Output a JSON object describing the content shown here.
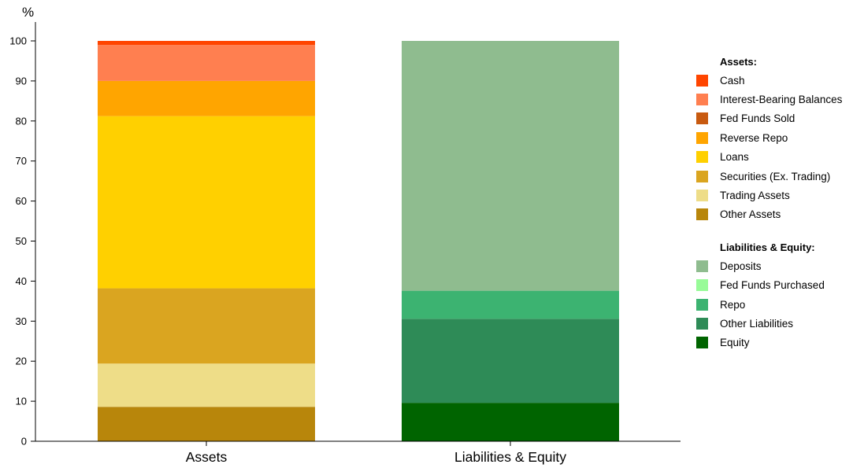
{
  "chart_data": {
    "type": "bar",
    "stacked": true,
    "ylabel": "%",
    "ylim": [
      0,
      100
    ],
    "yticks": [
      0,
      10,
      20,
      30,
      40,
      50,
      60,
      70,
      80,
      90,
      100
    ],
    "categories": [
      "Assets",
      "Liabilities & Equity"
    ],
    "series": [
      {
        "name": "Other Assets",
        "group": "Assets",
        "color": "#B8860B",
        "values": [
          8.6,
          0
        ]
      },
      {
        "name": "Trading Assets",
        "group": "Assets",
        "color": "#EEDD88",
        "values": [
          10.8,
          0
        ]
      },
      {
        "name": "Securities (Ex. Trading)",
        "group": "Assets",
        "color": "#DAA520",
        "values": [
          18.8,
          0
        ]
      },
      {
        "name": "Loans",
        "group": "Assets",
        "color": "#FFD000",
        "values": [
          43.0,
          0
        ]
      },
      {
        "name": "Reverse Repo",
        "group": "Assets",
        "color": "#FFA500",
        "values": [
          8.8,
          0
        ]
      },
      {
        "name": "Fed Funds Sold",
        "group": "Assets",
        "color": "#C85A10",
        "values": [
          0.0,
          0
        ]
      },
      {
        "name": "Interest-Bearing Balances",
        "group": "Assets",
        "color": "#FF7F50",
        "values": [
          9.0,
          0
        ]
      },
      {
        "name": "Cash",
        "group": "Assets",
        "color": "#FF4500",
        "values": [
          1.0,
          0
        ]
      },
      {
        "name": "Equity",
        "group": "Liabilities & Equity",
        "color": "#006400",
        "values": [
          0,
          9.6
        ]
      },
      {
        "name": "Other Liabilities",
        "group": "Liabilities & Equity",
        "color": "#2E8B57",
        "values": [
          0,
          21.0
        ]
      },
      {
        "name": "Repo",
        "group": "Liabilities & Equity",
        "color": "#3CB371",
        "values": [
          0,
          7.0
        ]
      },
      {
        "name": "Fed Funds Purchased",
        "group": "Liabilities & Equity",
        "color": "#98FB98",
        "values": [
          0,
          0.0
        ]
      },
      {
        "name": "Deposits",
        "group": "Liabilities & Equity",
        "color": "#8FBC8F",
        "values": [
          0,
          62.4
        ]
      }
    ],
    "legend": {
      "position": "right",
      "groups": [
        {
          "title": "Assets:",
          "items": [
            "Cash",
            "Interest-Bearing Balances",
            "Fed Funds Sold",
            "Reverse Repo",
            "Loans",
            "Securities (Ex. Trading)",
            "Trading Assets",
            "Other Assets"
          ]
        },
        {
          "title": "Liabilities & Equity:",
          "items": [
            "Deposits",
            "Fed Funds Purchased",
            "Repo",
            "Other Liabilities",
            "Equity"
          ]
        }
      ]
    },
    "grid": false
  }
}
